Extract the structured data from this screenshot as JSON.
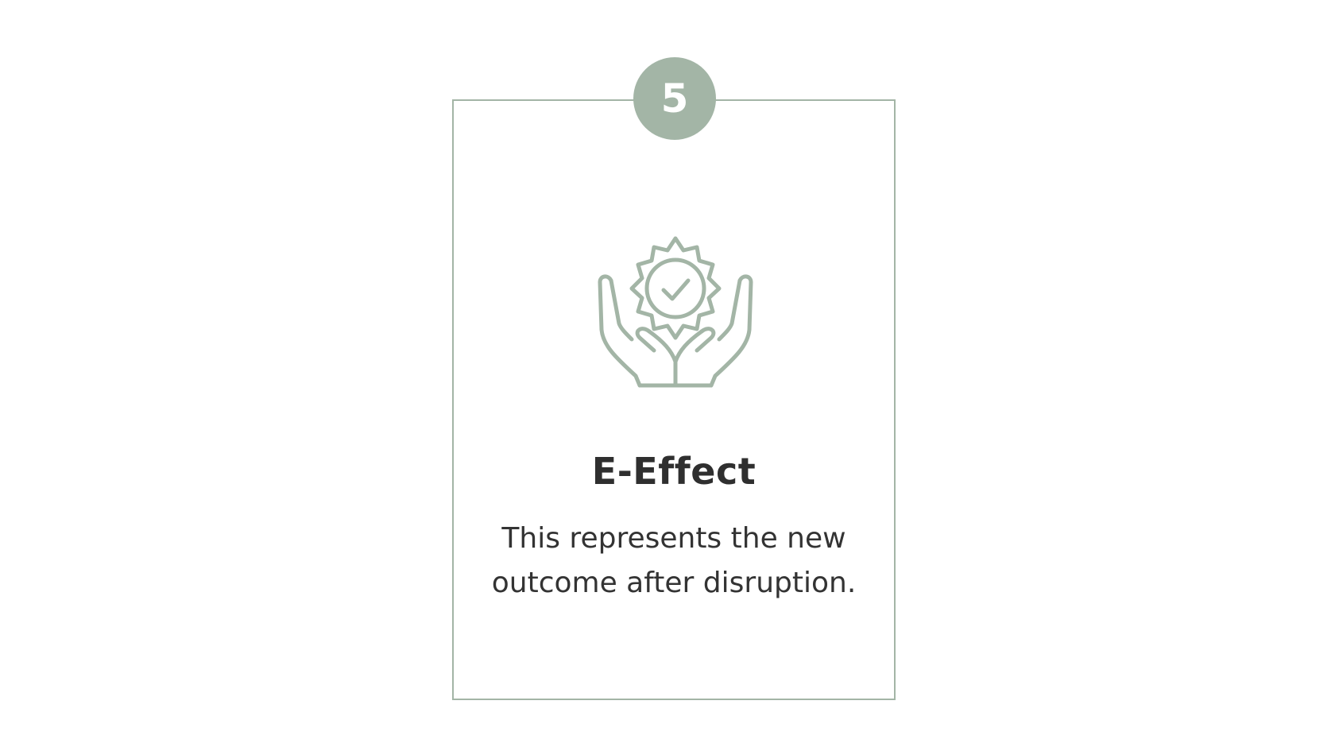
{
  "card": {
    "step_number": "5",
    "icon": "hands-holding-badge-check-icon",
    "title": "E-Effect",
    "description_line1": "This represents the new",
    "description_line2": "outcome after disruption."
  },
  "colors": {
    "accent": "#a3b5a6",
    "text_dark": "#2f2f2f",
    "background": "#ffffff"
  }
}
